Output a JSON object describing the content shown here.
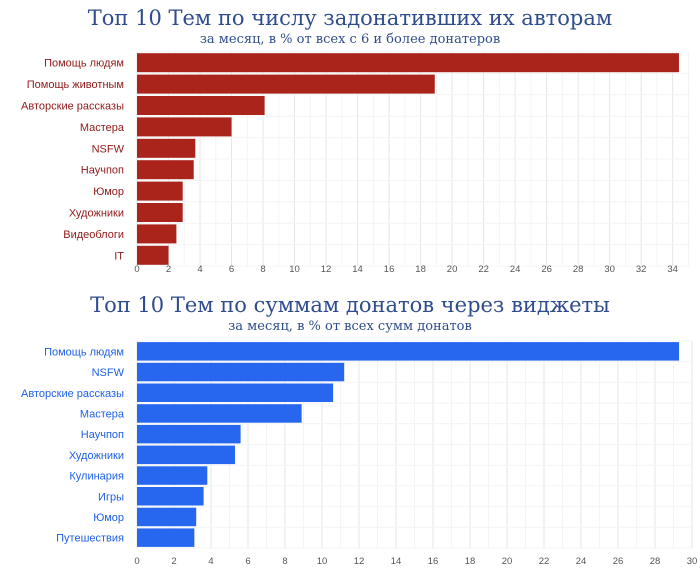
{
  "colors": {
    "title": "#2F4C8C",
    "red": "#AA241C",
    "red_label": "#8E1A1A",
    "blue": "#2767F0",
    "blue_label": "#2060E8",
    "grid": "#ECECEC"
  },
  "chart_data": [
    {
      "type": "bar",
      "orientation": "horizontal",
      "title": "Топ 10 Тем по числу задонативших их авторам",
      "subtitle": "за месяц, в % от всех с 6 и более донатеров",
      "categories": [
        "Помощь людям",
        "Помощь животным",
        "Авторские рассказы",
        "Мастера",
        "NSFW",
        "Научпоп",
        "Юмор",
        "Художники",
        "Видеоблоги",
        "IT"
      ],
      "values": [
        34.4,
        18.9,
        8.1,
        6.0,
        3.7,
        3.6,
        2.9,
        2.9,
        2.5,
        2.0
      ],
      "xticks": [
        0,
        2,
        4,
        6,
        8,
        10,
        12,
        14,
        16,
        18,
        20,
        22,
        24,
        26,
        28,
        30,
        32,
        34
      ],
      "xlim": [
        0,
        35.1
      ],
      "xlabel": "",
      "ylabel": "",
      "grid": true,
      "color": "red"
    },
    {
      "type": "bar",
      "orientation": "horizontal",
      "title": "Топ 10 Тем по суммам донатов через виджеты",
      "subtitle": "за месяц, в % от всех сумм донатов",
      "categories": [
        "Помощь людям",
        "NSFW",
        "Авторские рассказы",
        "Мастера",
        "Научпоп",
        "Художники",
        "Кулинария",
        "Игры",
        "Юмор",
        "Путешествия"
      ],
      "values": [
        29.3,
        11.2,
        10.6,
        8.9,
        5.6,
        5.3,
        3.8,
        3.6,
        3.2,
        3.1
      ],
      "xticks": [
        0,
        2,
        4,
        6,
        8,
        10,
        12,
        14,
        16,
        18,
        20,
        22,
        24,
        26,
        28,
        30
      ],
      "xlim": [
        0,
        30
      ],
      "xlabel": "",
      "ylabel": "",
      "grid": true,
      "color": "blue"
    }
  ]
}
